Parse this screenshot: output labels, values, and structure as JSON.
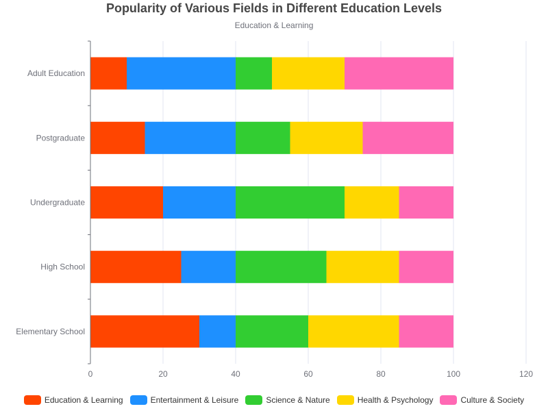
{
  "chart_data": {
    "type": "bar",
    "orientation": "horizontal",
    "stacked": true,
    "title": "Popularity of Various Fields in Different Education Levels",
    "subtitle": "Education & Learning",
    "categories": [
      "Elementary School",
      "High School",
      "Undergraduate",
      "Postgraduate",
      "Adult Education"
    ],
    "series": [
      {
        "name": "Education & Learning",
        "color": "#ff4500",
        "values": [
          30,
          25,
          20,
          15,
          10
        ]
      },
      {
        "name": "Entertainment & Leisure",
        "color": "#1e90ff",
        "values": [
          10,
          15,
          20,
          25,
          30
        ]
      },
      {
        "name": "Science & Nature",
        "color": "#32cd32",
        "values": [
          20,
          25,
          30,
          15,
          10
        ]
      },
      {
        "name": "Health & Psychology",
        "color": "#ffd700",
        "values": [
          25,
          20,
          15,
          20,
          20
        ]
      },
      {
        "name": "Culture & Society",
        "color": "#ff69b4",
        "values": [
          15,
          15,
          15,
          25,
          30
        ]
      }
    ],
    "xlim": [
      0,
      120
    ],
    "xticks": [
      "0",
      "20",
      "40",
      "60",
      "80",
      "100",
      "120"
    ],
    "grid": true,
    "legend_position": "bottom"
  }
}
